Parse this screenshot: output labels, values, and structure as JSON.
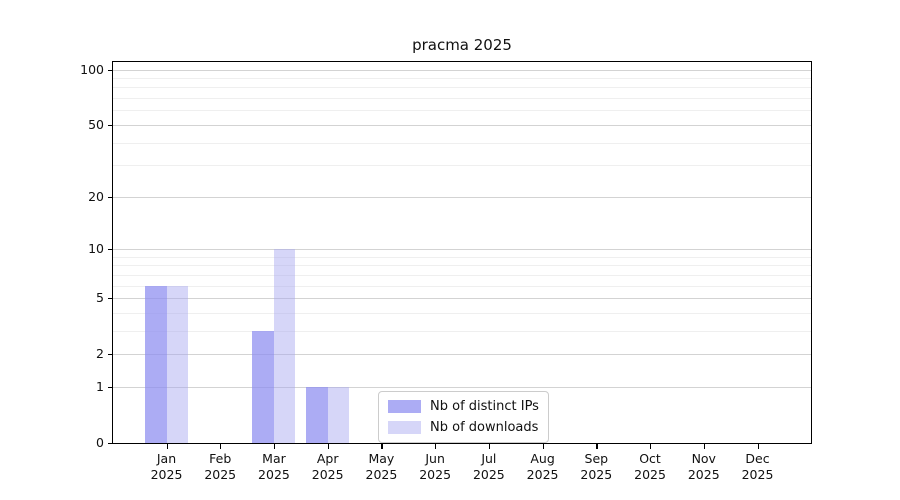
{
  "chart_data": {
    "type": "bar",
    "title": "pracma 2025",
    "categories": [
      "Jan",
      "Feb",
      "Mar",
      "Apr",
      "May",
      "Jun",
      "Jul",
      "Aug",
      "Sep",
      "Oct",
      "Nov",
      "Dec"
    ],
    "category_year": "2025",
    "series": [
      {
        "name": "Nb of distinct IPs",
        "color": "#8C8CF0B8",
        "values": [
          6,
          0,
          3,
          1,
          0,
          0,
          0,
          0,
          0,
          0,
          0,
          0
        ]
      },
      {
        "name": "Nb of downloads",
        "color": "#A5A5F073",
        "values": [
          6,
          0,
          10,
          1,
          0,
          0,
          0,
          0,
          0,
          0,
          0,
          0
        ]
      }
    ],
    "y_scale": "log1p",
    "ylim": [
      0,
      110
    ],
    "y_ticks": [
      0,
      1,
      2,
      5,
      10,
      20,
      50,
      100
    ],
    "y_minor_ticks": [
      3,
      4,
      6,
      7,
      8,
      9,
      30,
      40,
      60,
      70,
      80,
      90
    ],
    "xlabel": "",
    "ylabel": "",
    "grid": true,
    "legend_position": "lower center"
  },
  "colors": {
    "axis": "#000000",
    "text": "#111111",
    "major_grid": "#D3D3D3",
    "minor_grid": "#EFEFEF",
    "background": "#FFFFFF",
    "legend_border": "#CCCCCC"
  }
}
